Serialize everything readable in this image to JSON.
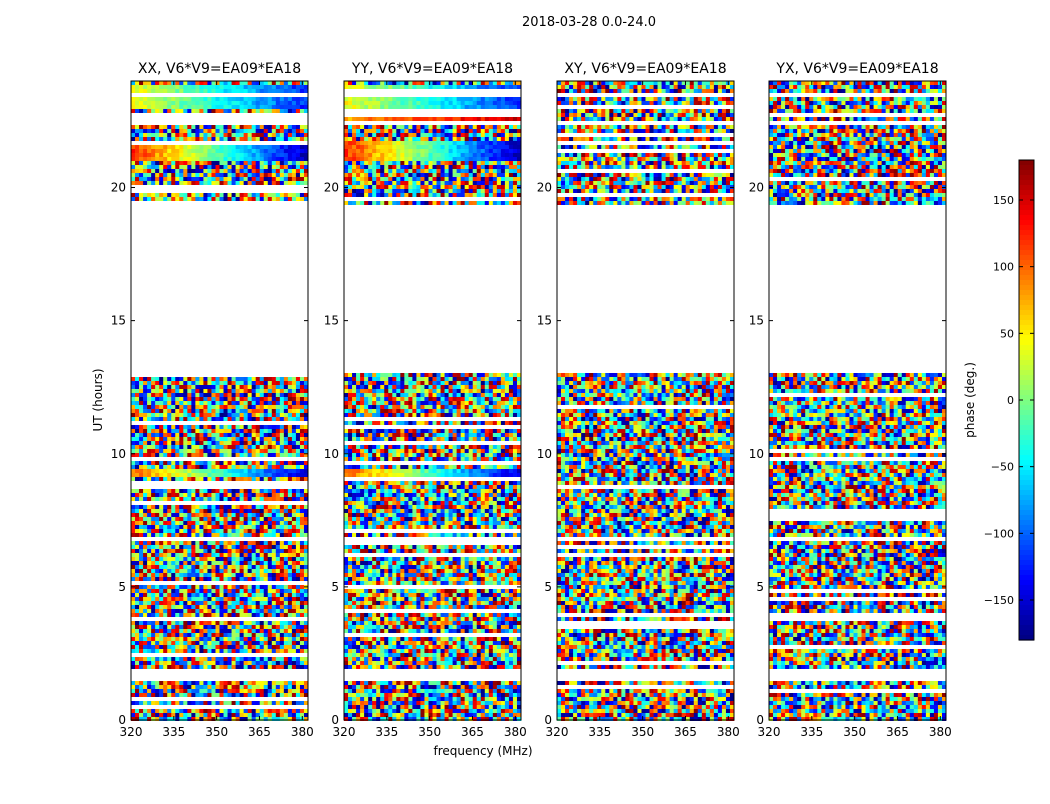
{
  "suptitle": "2018-03-28 0.0-24.0",
  "chart_data": {
    "type": "heatmap",
    "xlabel": "frequency (MHz)",
    "ylabel": "UT (hours)",
    "xlim": [
      320,
      382
    ],
    "ylim": [
      0,
      24
    ],
    "xticks": [
      320,
      335,
      350,
      365,
      380
    ],
    "yticks": [
      0,
      5,
      10,
      15,
      20
    ],
    "panels": [
      {
        "title": "XX, V6*V9=EA09*EA18",
        "pol": "XX"
      },
      {
        "title": "YY, V6*V9=EA09*EA18",
        "pol": "YY"
      },
      {
        "title": "XY, V6*V9=EA09*EA18",
        "pol": "XY"
      },
      {
        "title": "YX, V6*V9=EA09*EA18",
        "pol": "YX"
      }
    ],
    "data_ranges_hours": [
      [
        0.0,
        1.4
      ],
      [
        1.9,
        6.7
      ],
      [
        6.8,
        13.1
      ],
      [
        19.4,
        24.0
      ]
    ],
    "flagged_gaps_hours": [
      [
        1.4,
        1.9
      ],
      [
        13.1,
        19.4
      ],
      [
        22.3,
        22.5
      ],
      [
        23.45,
        23.55
      ]
    ],
    "coherent_bands": [
      {
        "pols": [
          "XX",
          "YY"
        ],
        "ut_range": [
          9.1,
          9.45
        ],
        "phase_start": 100,
        "phase_end": -150
      },
      {
        "pols": [
          "XX",
          "YY"
        ],
        "ut_range": [
          21.0,
          21.8
        ],
        "phase_start": 120,
        "phase_end": -160
      },
      {
        "pols": [
          "XX",
          "YY"
        ],
        "ut_range": [
          23.0,
          23.8
        ],
        "phase_start": 40,
        "phase_end": -120
      },
      {
        "pols": [
          "XX",
          "YY"
        ],
        "ut_range": [
          22.5,
          22.7
        ],
        "phase_start": 80,
        "phase_end": 150
      }
    ],
    "colorbar": {
      "label": "phase (deg.)",
      "colormap": "jet",
      "range": [
        -180,
        180
      ],
      "ticks": [
        150,
        100,
        50,
        0,
        -50,
        -100,
        -150
      ],
      "tick_labels": [
        "150",
        "100",
        "50",
        "0",
        "−50",
        "−100",
        "−150"
      ]
    }
  },
  "colors": {
    "axes": "#000000",
    "background": "#ffffff"
  }
}
